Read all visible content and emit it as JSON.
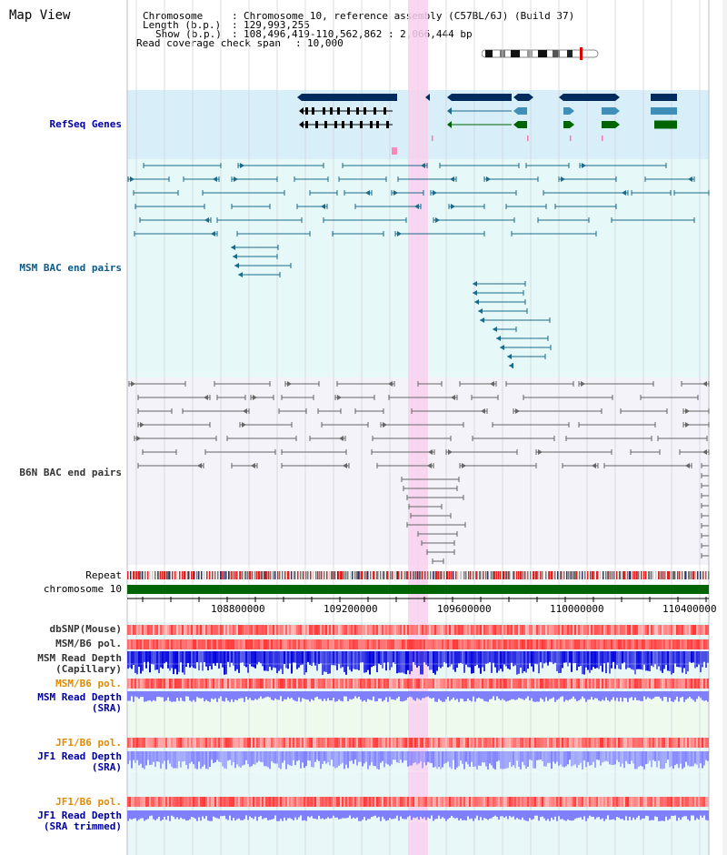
{
  "header": {
    "view_title": "Map View",
    "chromosome_key": "Chromosome",
    "chromosome_value": "Chromosome 10, reference assembly (C57BL/6J) (Build 37)",
    "length_key": "Length (b.p.)",
    "length_value": "129,993,255",
    "show_key": "Show (b.p.)",
    "show_value": "108,496,419-110,562,862 : 2,066,444 bp",
    "span_key": "Read coverage check span",
    "span_value": "10,000"
  },
  "tracks": {
    "refseq": "RefSeq Genes",
    "msm_bac": "MSM BAC end pairs",
    "b6n_bac": "B6N BAC end pairs",
    "repeat": "Repeat",
    "chromosome": "chromosome 10",
    "dbsnp": "dbSNP(Mouse)",
    "msm_b6_pol_1": "MSM/B6 pol.",
    "msm_depth_cap_1": "MSM Read Depth",
    "msm_depth_cap_2": "(Capillary)",
    "msm_b6_pol_2": "MSM/B6 pol.",
    "msm_depth_sra_1": "MSM Read Depth",
    "msm_depth_sra_2": "(SRA)",
    "jf1_b6_pol_1": "JF1/B6 pol.",
    "jf1_depth_sra_1": "JF1 Read Depth",
    "jf1_depth_sra_2": "(SRA)",
    "jf1_b6_pol_2": "JF1/B6 pol.",
    "jf1_depth_trim_1": "JF1 Read Depth",
    "jf1_depth_trim_2": "(SRA trimmed)"
  },
  "axis": {
    "ticks": [
      "108800000",
      "109200000",
      "109600000",
      "110000000",
      "110400000"
    ]
  },
  "colors": {
    "gene_dark": "#002b5c",
    "gene_green": "#006400",
    "gene_light": "#3f8fb8",
    "bac_msm": "#1a6b8a",
    "bac_b6n": "#666666",
    "highlight": "#f8d0ef",
    "snp": "#ff3333",
    "depth_blue": "#0000dd",
    "depth_lavender": "#8080ff"
  }
}
